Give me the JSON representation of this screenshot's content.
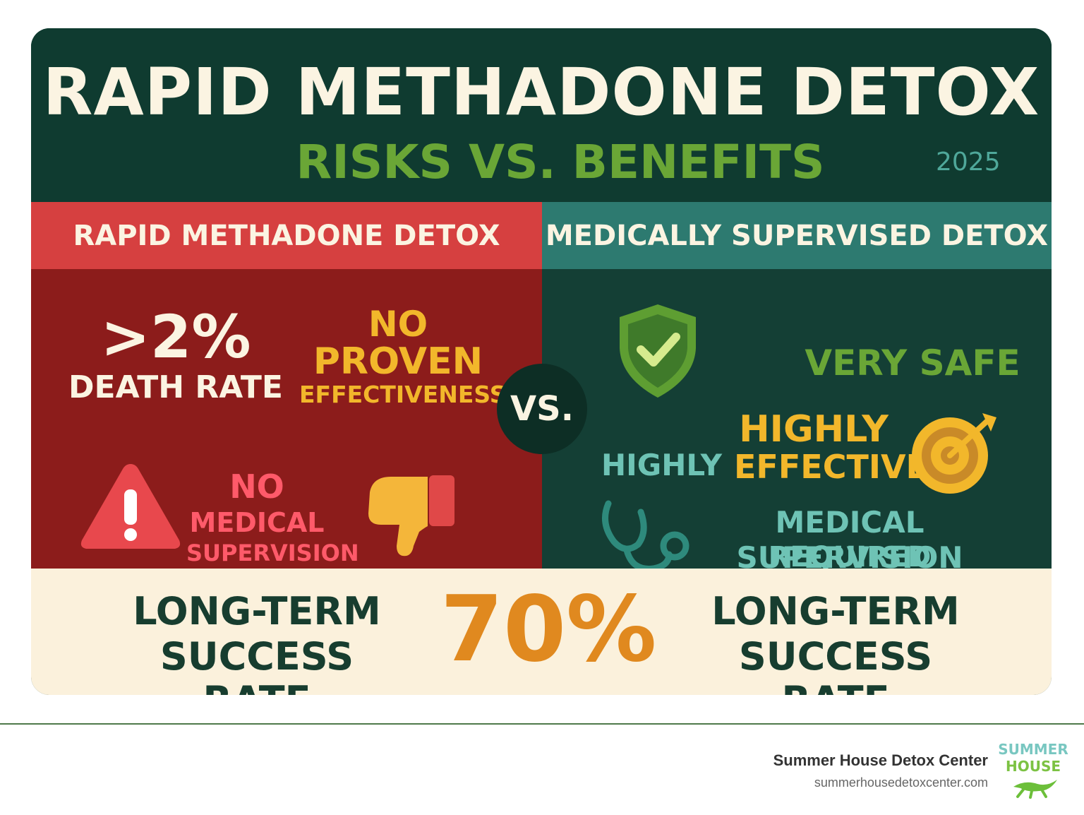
{
  "header": {
    "title": "RAPID METHADONE DETOX",
    "subtitle": "RISKS VS. BENEFITS",
    "year": "2025"
  },
  "columns": {
    "left_heading": "RAPID METHADONE DETOX",
    "right_heading": "MEDICALLY SUPERVISED DETOX"
  },
  "left_panel": {
    "death_stat": ">2%",
    "death_label": "DEATH RATE",
    "effectiveness_line1": "NO",
    "effectiveness_line2": "PROVEN",
    "effectiveness_line3": "EFFECTIVENESS",
    "supervision_line1": "NO",
    "supervision_line2": "MEDICAL",
    "supervision_line3": "SUPERVISION",
    "icons": [
      "warning-icon",
      "thumbs-down-icon"
    ]
  },
  "vs_label": "VS.",
  "right_panel": {
    "safety": "VERY SAFE",
    "highly": "HIGHLY",
    "effective_line1": "HIGHLY",
    "effective_line2": "EFFECTIVE",
    "supervision_line1": "MEDICAL SUPERVISION",
    "supervision_line2": "REQUIRED",
    "icons": [
      "shield-check-icon",
      "target-icon",
      "stethoscope-icon"
    ]
  },
  "bottom": {
    "left_line1": "LONG-TERM",
    "left_line2": "SUCCESS RATE",
    "percentage": "70%",
    "right_line1": "LONG-TERM",
    "right_line2": "SUCCESS RATE"
  },
  "footer": {
    "organization": "Summer House Detox Center",
    "website": "summerhousedetoxcenter.com",
    "logo_line1": "SUMMER",
    "logo_line2": "HOUSE"
  },
  "colors": {
    "dark_green": "#0f3b30",
    "red_header": "#d64040",
    "teal_header": "#2d7a70",
    "red_panel": "#8c1c1b",
    "accent_green": "#6aa636",
    "accent_yellow": "#f2b72b",
    "accent_orange": "#e0891f",
    "teal_text": "#6ec3b5",
    "pink_text": "#ff5a6a"
  }
}
